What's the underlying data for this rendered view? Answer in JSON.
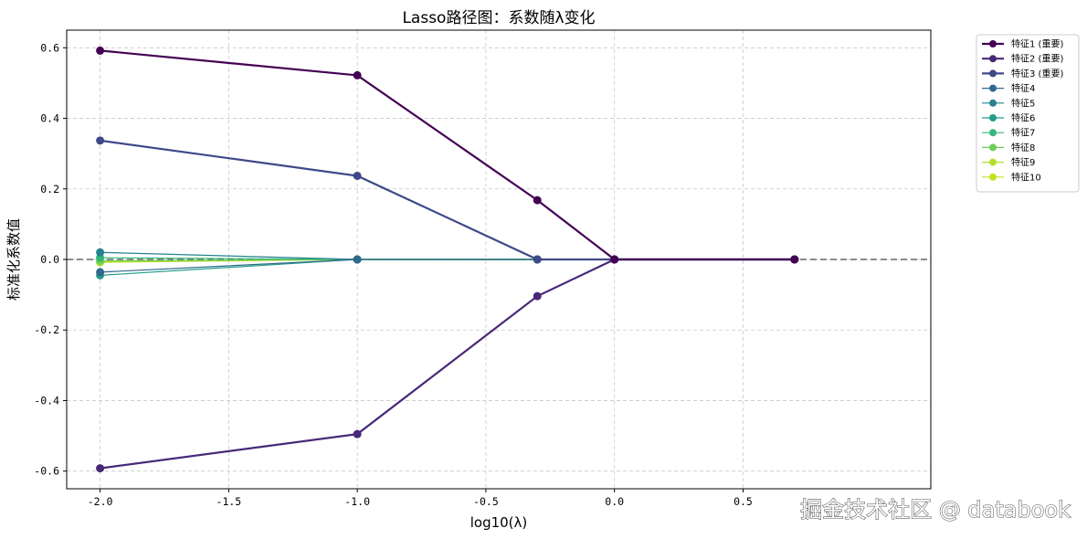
{
  "chart_data": {
    "type": "line",
    "title": "Lasso路径图：系数随λ变化",
    "xlabel": "log10(λ)",
    "ylabel": "标准化系数值",
    "xlim": [
      -2.13,
      1.23
    ],
    "ylim": [
      -0.65,
      0.65
    ],
    "xticks": [
      -2.0,
      -1.5,
      -1.0,
      -0.5,
      0.0,
      0.5
    ],
    "xtick_labels": [
      "-2.0",
      "-1.5",
      "-1.0",
      "-0.5",
      "0.0",
      "0.5"
    ],
    "yticks": [
      -0.6,
      -0.4,
      -0.2,
      0.0,
      0.2,
      0.4,
      0.6
    ],
    "ytick_labels": [
      "-0.6",
      "-0.4",
      "-0.2",
      "0.0",
      "0.2",
      "0.4",
      "0.6"
    ],
    "grid": true,
    "reference_line_y": 0,
    "legend_position": "outside-top-right",
    "x": [
      -2.0,
      -1.0,
      -0.3,
      0.0,
      0.7
    ],
    "series": [
      {
        "name": "特征1 (重要)",
        "color": "#440154",
        "important": true,
        "values": [
          0.592,
          0.522,
          0.168,
          0.0,
          0.0
        ]
      },
      {
        "name": "特征2 (重要)",
        "color": "#482878",
        "important": true,
        "values": [
          -0.592,
          -0.495,
          -0.104,
          0.0,
          0.0
        ]
      },
      {
        "name": "特征3 (重要)",
        "color": "#3e4989",
        "important": true,
        "values": [
          0.337,
          0.237,
          0.0,
          0.0,
          0.0
        ]
      },
      {
        "name": "特征4",
        "color": "#31688e",
        "important": false,
        "values": [
          -0.036,
          0.0,
          0.0,
          0.0,
          0.0
        ]
      },
      {
        "name": "特征5",
        "color": "#26828e",
        "important": false,
        "values": [
          0.02,
          0.0,
          0.0,
          0.0,
          0.0
        ]
      },
      {
        "name": "特征6",
        "color": "#1f9e89",
        "important": false,
        "values": [
          -0.045,
          0.0,
          0.0,
          0.0,
          0.0
        ]
      },
      {
        "name": "特征7",
        "color": "#35b779",
        "important": false,
        "values": [
          0.005,
          0.0,
          0.0,
          0.0,
          0.0
        ]
      },
      {
        "name": "特征8",
        "color": "#6ece58",
        "important": false,
        "values": [
          -0.004,
          0.0,
          0.0,
          0.0,
          0.0
        ]
      },
      {
        "name": "特征9",
        "color": "#b5de2b",
        "important": false,
        "values": [
          -0.008,
          0.0,
          0.0,
          0.0,
          0.0
        ]
      },
      {
        "name": "特征10",
        "color": "#c8e020",
        "important": false,
        "values": [
          -0.006,
          0.0,
          0.0,
          0.0,
          0.0
        ]
      }
    ]
  },
  "watermark": "掘金技术社区 @ databook"
}
